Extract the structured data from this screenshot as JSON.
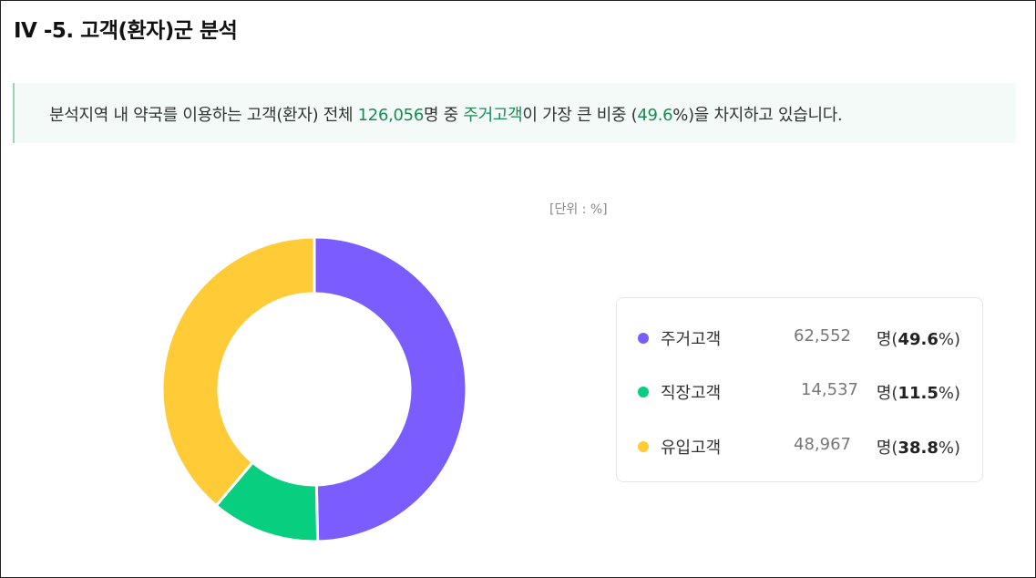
{
  "title": "IV -5. 고객(환자)군 분석",
  "summary": {
    "part1": "분석지역 내 약국를 이용하는 고객(환자) 전체 ",
    "total": "126,056",
    "part2": "명 중 ",
    "top_group": "주거고객",
    "part3": "이 가장 큰 비중 (",
    "top_pct": "49.6",
    "part4": "%)을 차지하고 있습니다."
  },
  "colors": {
    "highlight": "#1a8a55",
    "residential": "#7b5cff",
    "workplace": "#08cf7f",
    "inflow": "#ffcb36"
  },
  "chart_data": {
    "type": "pie",
    "subtype": "donut",
    "unit_label": "[단위 : %]",
    "categories": [
      "주거고객",
      "직장고객",
      "유입고객"
    ],
    "values": [
      49.6,
      11.5,
      38.8
    ],
    "counts": [
      "62,552",
      "14,537",
      "48,967"
    ],
    "count_unit": "명",
    "colors": [
      "#7b5cff",
      "#08cf7f",
      "#ffcb36"
    ],
    "start": "top",
    "direction": "clockwise"
  },
  "legend": {
    "items": [
      {
        "label": "주거고객",
        "count": "62,552",
        "unit": "명(",
        "pct": "49.6",
        "pct_suffix": "%)",
        "color": "#7b5cff"
      },
      {
        "label": "직장고객",
        "count": "14,537",
        "unit": "명(",
        "pct": "11.5",
        "pct_suffix": "%)",
        "color": "#08cf7f"
      },
      {
        "label": "유입고객",
        "count": "48,967",
        "unit": "명(",
        "pct": "38.8",
        "pct_suffix": "%)",
        "color": "#ffcb36"
      }
    ]
  }
}
